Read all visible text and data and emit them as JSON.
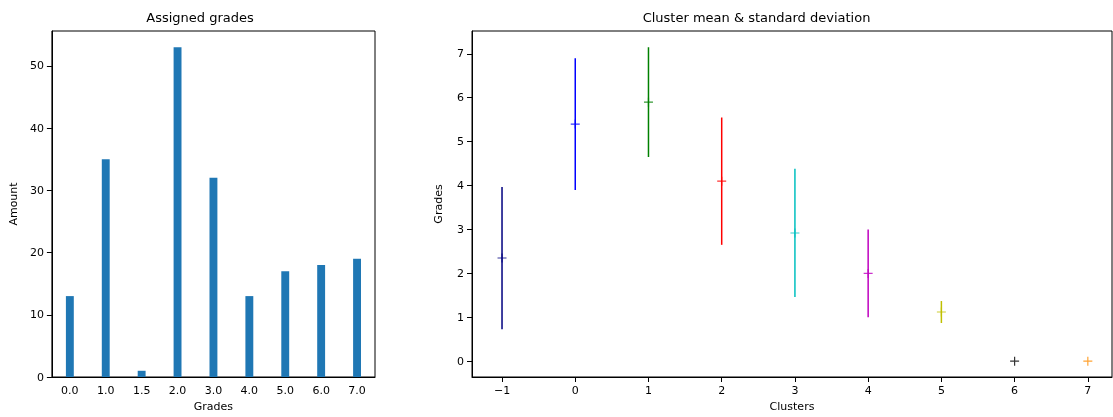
{
  "chart_data": [
    {
      "type": "bar",
      "title": "Assigned grades",
      "xlabel": "Grades",
      "ylabel": "Amount",
      "categories": [
        "0.0",
        "1.0",
        "1.5",
        "2.0",
        "3.0",
        "4.0",
        "5.0",
        "6.0",
        "7.0"
      ],
      "values": [
        13,
        35,
        1,
        53,
        32,
        13,
        17,
        18,
        19
      ],
      "color": "#1f77b4",
      "ylim": [
        0,
        55.6
      ],
      "yticks": [
        0,
        10,
        20,
        30,
        40,
        50
      ],
      "grid": false
    },
    {
      "type": "scatter",
      "title": "Cluster mean & standard deviation",
      "xlabel": "Clusters",
      "ylabel": "Grades",
      "x": [
        -1,
        0,
        1,
        2,
        3,
        4,
        5,
        6,
        7
      ],
      "values": [
        2.35,
        5.4,
        5.9,
        4.1,
        2.92,
        2.0,
        1.12,
        0,
        0
      ],
      "errors": [
        1.62,
        1.5,
        1.25,
        1.45,
        1.46,
        1.0,
        0.25,
        0,
        0
      ],
      "colors": [
        "#000080",
        "#0000ff",
        "#008000",
        "#ff0000",
        "#00bfbf",
        "#bf00bf",
        "#bfbf00",
        "#000000",
        "#ff8c00"
      ],
      "marker": "cross",
      "xlim": [
        -1.41,
        7.33
      ],
      "ylim": [
        -0.36,
        7.52
      ],
      "xticks": [
        {
          "value": -1,
          "label": "−1"
        },
        0,
        1,
        2,
        3,
        4,
        5,
        6,
        7
      ],
      "yticks": [
        0,
        1,
        2,
        3,
        4,
        5,
        6,
        7
      ],
      "grid": false
    }
  ]
}
